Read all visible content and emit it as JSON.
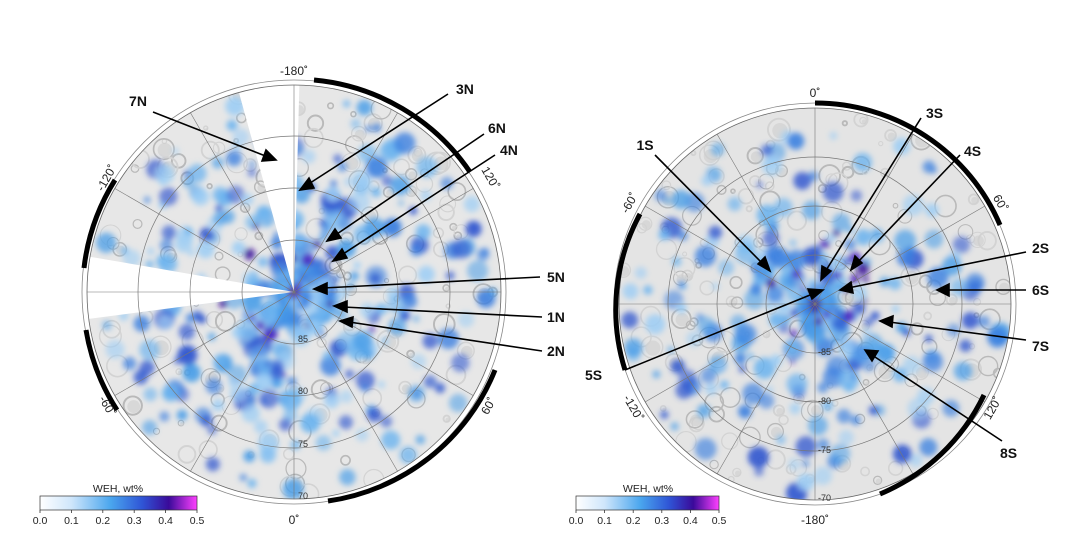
{
  "maps": [
    {
      "hemisphere": "north",
      "lon_labels": {
        "top": "-180˚",
        "bottom": "0˚",
        "upper_left": "-120˚",
        "upper_right": "120˚",
        "lower_left": "-60˚",
        "lower_right": "60˚"
      },
      "lat_labels": [
        "85",
        "80",
        "75",
        "70"
      ],
      "markers": [
        "7N",
        "3N",
        "6N",
        "4N",
        "5N",
        "1N",
        "2N"
      ],
      "colorbar": {
        "title": "WEH, wt%",
        "ticks": [
          "0.0",
          "0.1",
          "0.2",
          "0.3",
          "0.4",
          "0.5"
        ]
      }
    },
    {
      "hemisphere": "south",
      "lon_labels": {
        "top": "0˚",
        "bottom": "-180˚",
        "upper_left": "-60˚",
        "upper_right": "60˚",
        "lower_left": "-120˚",
        "lower_right": "120˚"
      },
      "lat_labels": [
        "-85",
        "-80",
        "-75",
        "-70"
      ],
      "markers": [
        "1S",
        "3S",
        "4S",
        "2S",
        "6S",
        "7S",
        "5S",
        "8S"
      ],
      "colorbar": {
        "title": "WEH, wt%",
        "ticks": [
          "0.0",
          "0.1",
          "0.2",
          "0.3",
          "0.4",
          "0.5"
        ]
      }
    }
  ],
  "colors": {
    "low": "#ffffff",
    "mid": "#4aa6ee",
    "high": "#3a0a9a",
    "max": "#ff40ff"
  }
}
